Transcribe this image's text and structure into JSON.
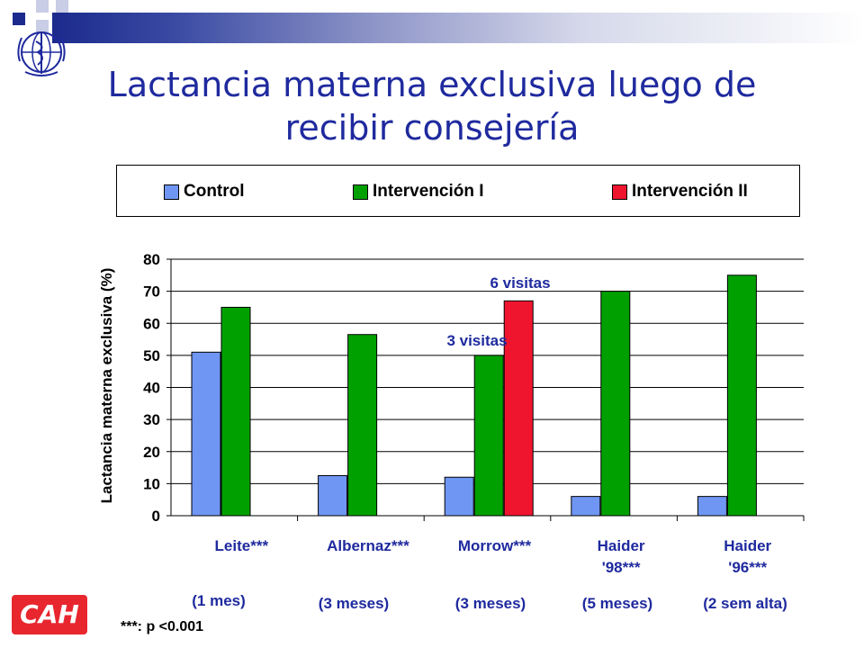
{
  "slide": {
    "title": "Lactancia materna exclusiva luego de recibir consejería",
    "logo_text": "CAH",
    "footnote": "***: p <0.001",
    "brand_color": "#1f2a9e"
  },
  "chart_data": {
    "type": "bar",
    "ylabel": "Lactancia materna exclusiva (%)",
    "ylim": [
      0,
      80
    ],
    "yticks": [
      0,
      10,
      20,
      30,
      40,
      50,
      60,
      70,
      80
    ],
    "grid": true,
    "legend_position": "top",
    "categories": [
      {
        "lines": [
          "Leite***"
        ],
        "duration": "(1 mes)"
      },
      {
        "lines": [
          "Albernaz***"
        ],
        "duration": "(3 meses)"
      },
      {
        "lines": [
          "Morrow***"
        ],
        "duration": "(3 meses)"
      },
      {
        "lines": [
          "Haider",
          "'98***"
        ],
        "duration": "(5 meses)"
      },
      {
        "lines": [
          "Haider",
          "'96***"
        ],
        "duration": "(2  sem alta)"
      }
    ],
    "series": [
      {
        "name": "Control",
        "color": "#6f96f2",
        "values": [
          51,
          12.5,
          12,
          6,
          6
        ]
      },
      {
        "name": "Intervención  I",
        "color": "#00a000",
        "values": [
          65,
          56.5,
          50,
          70,
          75
        ]
      },
      {
        "name": "Intervención  II",
        "color": "#f0152f",
        "values": [
          null,
          null,
          67,
          null,
          null
        ]
      }
    ],
    "annotations": [
      {
        "text": "6 visitas",
        "category": 2
      },
      {
        "text": "3 visitas",
        "category": 2
      }
    ]
  }
}
